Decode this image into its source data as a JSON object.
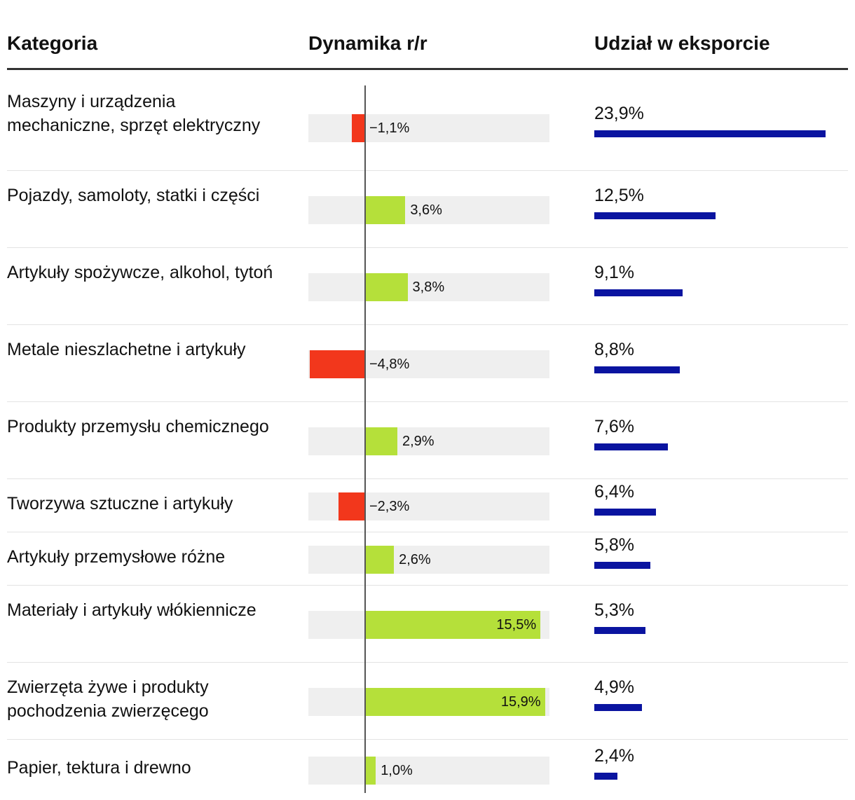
{
  "headers": {
    "category": "Kategoria",
    "dynamics": "Dynamika r/r",
    "share": "Udział w eksporcie"
  },
  "colors": {
    "negative": "#f2371c",
    "positive": "#b5e03a",
    "share": "#0a14a0",
    "track": "#efefef"
  },
  "chart_data": {
    "type": "bar",
    "categories": [
      "Maszyny i urządzenia mechaniczne, sprzęt elektryczny",
      "Pojazdy, samoloty, statki i części",
      "Artykuły spożywcze, alkohol, tytoń",
      "Metale nieszlachetne i artykuły",
      "Produkty przemysłu chemicznego",
      "Tworzywa sztuczne i artykuły",
      "Artykuły przemysłowe różne",
      "Materiały i artykuły włókiennicze",
      "Zwierzęta żywe i produkty pochodzenia zwierzęcego",
      "Papier, tektura i drewno"
    ],
    "series": [
      {
        "name": "Dynamika r/r",
        "values": [
          -1.1,
          3.6,
          3.8,
          -4.8,
          2.9,
          -2.3,
          2.6,
          15.5,
          15.9,
          1.0
        ],
        "labels": [
          "−1,1%",
          "3,6%",
          "3,8%",
          "−4,8%",
          "2,9%",
          "−2,3%",
          "2,6%",
          "15,5%",
          "15,9%",
          "1,0%"
        ],
        "range": [
          -4.8,
          15.9
        ]
      },
      {
        "name": "Udział w eksporcie",
        "values": [
          23.9,
          12.5,
          9.1,
          8.8,
          7.6,
          6.4,
          5.8,
          5.3,
          4.9,
          2.4
        ],
        "labels": [
          "23,9%",
          "12,5%",
          "9,1%",
          "8,8%",
          "7,6%",
          "6,4%",
          "5,8%",
          "5,3%",
          "4,9%",
          "2,4%"
        ],
        "range": [
          0,
          23.9
        ]
      }
    ]
  }
}
